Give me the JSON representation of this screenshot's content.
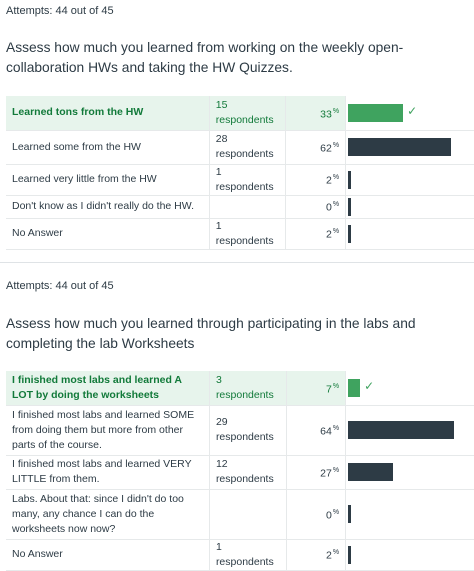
{
  "q1": {
    "attempts": "Attempts: 44 out of 45",
    "question": "Assess how much you learned from working on the weekly open-collaboration HWs and taking the HW Quizzes.",
    "rows": [
      {
        "answer": "Learned tons from the HW",
        "respondents": "15 respondents",
        "percent": "33",
        "fraction": 0.33,
        "correct": true
      },
      {
        "answer": "Learned some from the HW",
        "respondents": "28 respondents",
        "percent": "62",
        "fraction": 0.62,
        "correct": false
      },
      {
        "answer": "Learned very little from the HW",
        "respondents": "1 respondents",
        "percent": "2",
        "fraction": 0.02,
        "correct": false
      },
      {
        "answer": "Don't know as I didn't really do the HW.",
        "respondents": "",
        "percent": "0",
        "fraction": 0.0,
        "correct": false
      },
      {
        "answer": "No Answer",
        "respondents": "1 respondents",
        "percent": "2",
        "fraction": 0.02,
        "correct": false
      }
    ]
  },
  "q2": {
    "attempts": "Attempts: 44 out of 45",
    "question": "Assess how much you learned through participating in the labs and completing the lab Worksheets",
    "rows": [
      {
        "answer": "I finished most labs and learned A LOT by doing the worksheets",
        "respondents": "3 respondents",
        "percent": "7",
        "fraction": 0.07,
        "correct": true
      },
      {
        "answer": "I finished most labs and learned SOME from doing them but more from other parts of the course.",
        "respondents": "29 respondents",
        "percent": "64",
        "fraction": 0.64,
        "correct": false
      },
      {
        "answer": "I finished most labs and learned VERY LITTLE from them.",
        "respondents": "12 respondents",
        "percent": "27",
        "fraction": 0.27,
        "correct": false
      },
      {
        "answer": "Labs. About that: since I didn't do too many, any chance I can do the worksheets now now?",
        "respondents": "",
        "percent": "0",
        "fraction": 0.0,
        "correct": false
      },
      {
        "answer": "No Answer",
        "respondents": "1 respondents",
        "percent": "2",
        "fraction": 0.02,
        "correct": false
      }
    ]
  },
  "percent_symbol": "%",
  "check_icon": "check-icon",
  "colors": {
    "correct": "#3fa35f",
    "bar": "#2d3b45",
    "correct_bg": "#e7f4ec"
  }
}
